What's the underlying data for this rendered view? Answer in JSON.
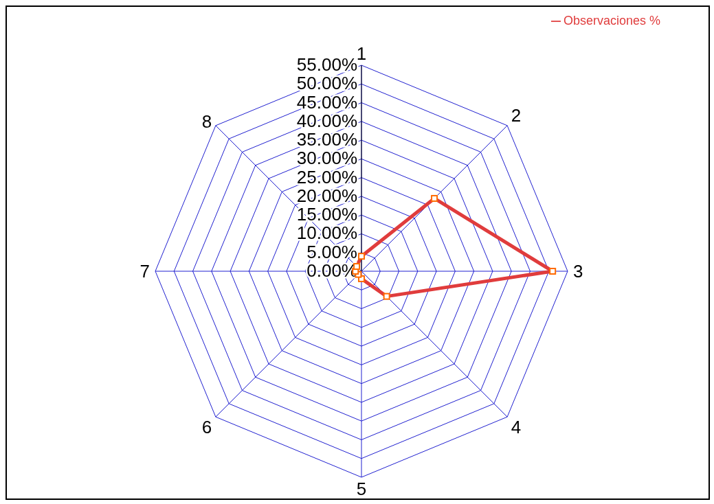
{
  "chart_data": {
    "type": "radar",
    "categories": [
      "1",
      "2",
      "3",
      "4",
      "5",
      "6",
      "7",
      "8"
    ],
    "series": [
      {
        "name": "Observaciones %",
        "color": "#e03c3c",
        "values": [
          4,
          27.5,
          51,
          9.5,
          2,
          1.2,
          1.6,
          1.8
        ]
      }
    ],
    "ylim": [
      0,
      55
    ],
    "yticks": [
      {
        "value": 0,
        "label": "0.00%"
      },
      {
        "value": 5,
        "label": "5.00%"
      },
      {
        "value": 10,
        "label": "10.00%"
      },
      {
        "value": 15,
        "label": "15.00%"
      },
      {
        "value": 20,
        "label": "20.00%"
      },
      {
        "value": 25,
        "label": "25.00%"
      },
      {
        "value": 30,
        "label": "30.00%"
      },
      {
        "value": 35,
        "label": "35.00%"
      },
      {
        "value": 40,
        "label": "40.00%"
      },
      {
        "value": 45,
        "label": "45.00%"
      },
      {
        "value": 50,
        "label": "50.00%"
      },
      {
        "value": 55,
        "label": "55.00%"
      }
    ],
    "grid": true,
    "legend": "top right",
    "marker": "square",
    "line_style": "solid"
  }
}
